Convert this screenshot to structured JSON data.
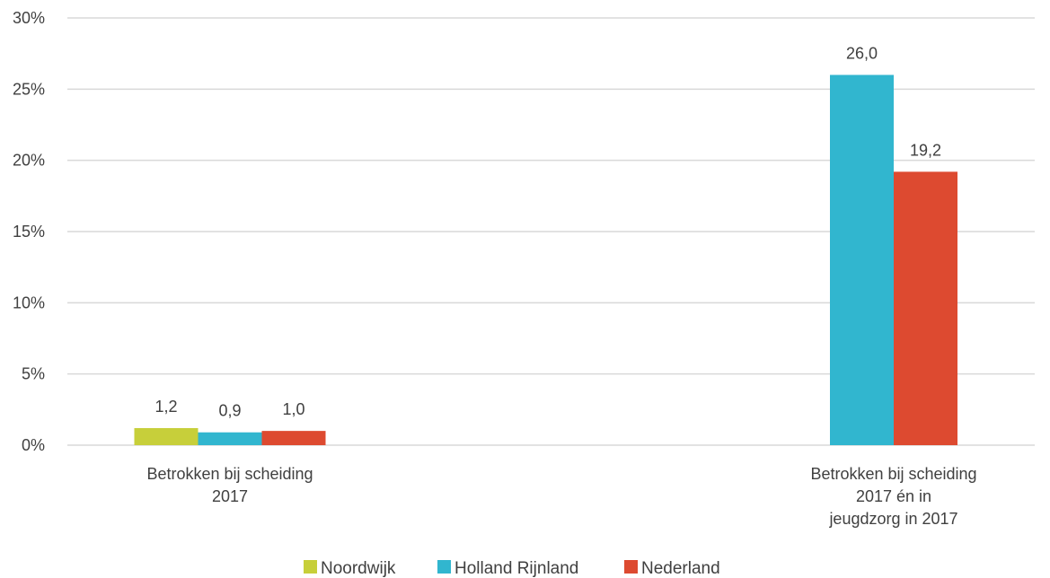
{
  "chart_data": {
    "type": "bar",
    "categories": [
      [
        "Betrokken bij scheiding",
        "2017"
      ],
      [
        "Betrokken bij scheiding",
        "2017 én in",
        "jeugdzorg in 2017"
      ]
    ],
    "series": [
      {
        "name": "Noordwijk",
        "color": "#c7cf3a",
        "values": [
          1.2,
          null
        ],
        "labels": [
          "1,2",
          null
        ]
      },
      {
        "name": "Holland Rijnland",
        "color": "#31b6cf",
        "values": [
          0.9,
          26.0
        ],
        "labels": [
          "0,9",
          "26,0"
        ]
      },
      {
        "name": "Nederland",
        "color": "#dd4a30",
        "values": [
          1.0,
          19.2
        ],
        "labels": [
          "1,0",
          "19,2"
        ]
      }
    ],
    "ylim": [
      0,
      30
    ],
    "yticks": [
      0,
      5,
      10,
      15,
      20,
      25,
      30
    ],
    "ytick_labels": [
      "0%",
      "5%",
      "10%",
      "15%",
      "20%",
      "25%",
      "30%"
    ],
    "grid": true,
    "legend_position": "bottom"
  }
}
